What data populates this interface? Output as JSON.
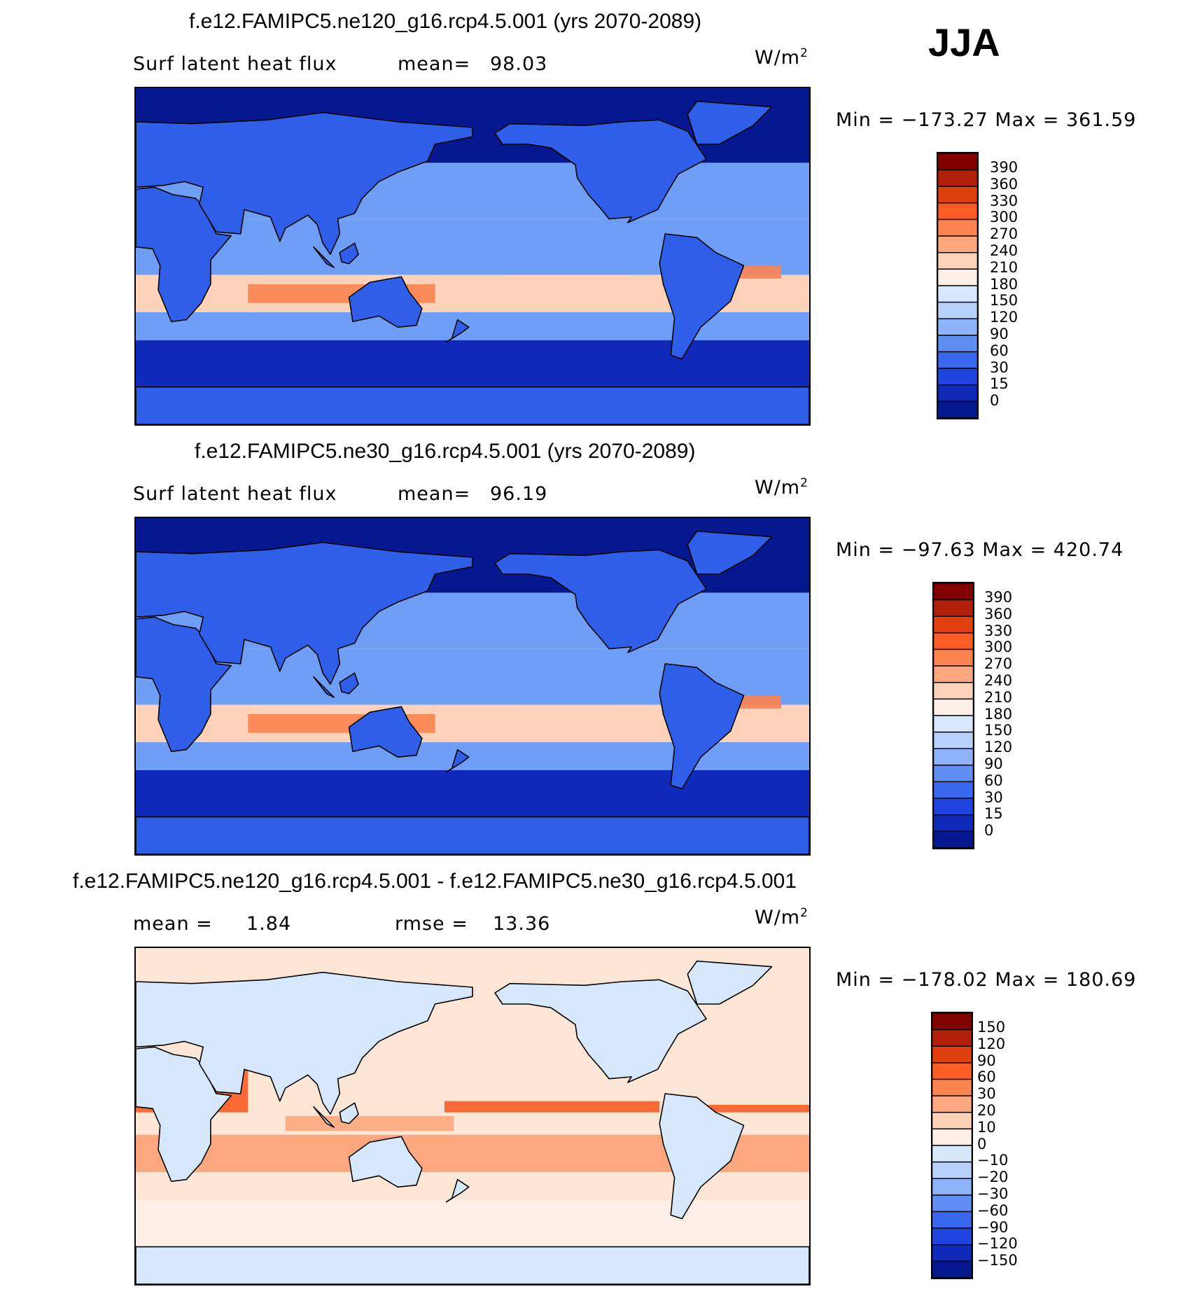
{
  "season": "JJA",
  "panels": [
    {
      "title": "f.e12.FAMIPC5.ne120_g16.rcp4.5.001 (yrs 2070-2089)",
      "variable": "Surf latent heat flux",
      "stat_label": "mean=",
      "stat_value": "98.03",
      "units_base": "W/m",
      "units_exp": "2",
      "minmax": "Min = −173.27 Max = 361.59",
      "colorbar": {
        "levels": [
          "390",
          "360",
          "330",
          "300",
          "270",
          "240",
          "210",
          "180",
          "150",
          "120",
          "90",
          "60",
          "30",
          "15",
          "0"
        ],
        "colors": [
          "#800000",
          "#b3200a",
          "#e0400e",
          "#fa5c24",
          "#fb8350",
          "#fca77e",
          "#fdd2b8",
          "#fef0e6",
          "#d8e8fc",
          "#b7d1fb",
          "#8eb3fa",
          "#6090f6",
          "#3a68ef",
          "#1f45e0",
          "#0f2ab8",
          "#061890"
        ]
      },
      "map_kind": "field",
      "map_colors": {
        "ocean": "#6e9ef6",
        "land": "#2f5fe8",
        "south": "#0f2ab8",
        "polar": "#061890",
        "warm": "#fdd2b8",
        "hot": "#fb8350"
      }
    },
    {
      "title": "f.e12.FAMIPC5.ne30_g16.rcp4.5.001 (yrs 2070-2089)",
      "variable": "Surf latent heat flux",
      "stat_label": "mean=",
      "stat_value": "96.19",
      "units_base": "W/m",
      "units_exp": "2",
      "minmax": "Min = −97.63 Max = 420.74",
      "colorbar": {
        "levels": [
          "390",
          "360",
          "330",
          "300",
          "270",
          "240",
          "210",
          "180",
          "150",
          "120",
          "90",
          "60",
          "30",
          "15",
          "0"
        ],
        "colors": [
          "#800000",
          "#b3200a",
          "#e0400e",
          "#fa5c24",
          "#fb8350",
          "#fca77e",
          "#fdd2b8",
          "#fef0e6",
          "#d8e8fc",
          "#b7d1fb",
          "#8eb3fa",
          "#6090f6",
          "#3a68ef",
          "#1f45e0",
          "#0f2ab8",
          "#061890"
        ]
      },
      "map_kind": "field",
      "map_colors": {
        "ocean": "#6e9ef6",
        "land": "#2f5fe8",
        "south": "#0f2ab8",
        "polar": "#061890",
        "warm": "#fdd2b8",
        "hot": "#fb8350"
      }
    },
    {
      "title": "f.e12.FAMIPC5.ne120_g16.rcp4.5.001 - f.e12.FAMIPC5.ne30_g16.rcp4.5.001",
      "variable": "",
      "stat_label": "mean =",
      "stat_value": "1.84",
      "stat2_label": "rmse =",
      "stat2_value": "13.36",
      "units_base": "W/m",
      "units_exp": "2",
      "minmax": "Min = −178.02 Max = 180.69",
      "colorbar": {
        "levels": [
          "150",
          "120",
          "90",
          "60",
          "30",
          "20",
          "10",
          "0",
          "−10",
          "−20",
          "−30",
          "−60",
          "−90",
          "−120",
          "−150"
        ],
        "colors": [
          "#800000",
          "#b3200a",
          "#e0400e",
          "#fa5c24",
          "#fb8350",
          "#fca77e",
          "#fdd2b8",
          "#fef0e6",
          "#d8e8fc",
          "#b7d1fb",
          "#8eb3fa",
          "#6090f6",
          "#3a68ef",
          "#1f45e0",
          "#0f2ab8",
          "#061890"
        ]
      },
      "map_kind": "diff",
      "map_colors": {
        "ocean": "#fde6d6",
        "land": "#d8e8fc",
        "south": "#fef0e6",
        "polar": "#fde6d6",
        "warm": "#fca77e",
        "hot": "#fa5c24"
      }
    }
  ]
}
